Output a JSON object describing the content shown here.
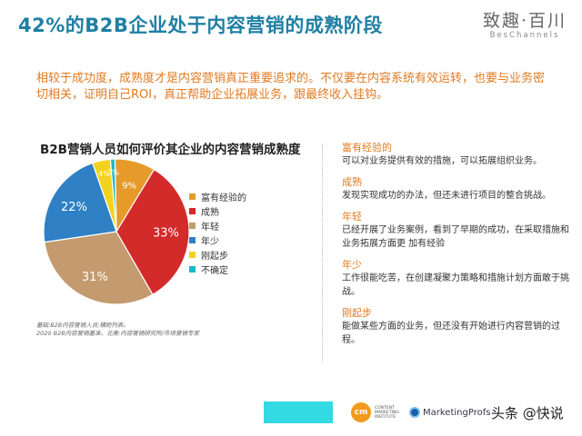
{
  "header": {
    "title": "42%的B2B企业处于内容营销的成熟阶段",
    "logo_cn": "致趣·百川",
    "logo_en": "BesChannels"
  },
  "intro": "相较于成功度，成熟度才是内容营销真正重要追求的。不仅要在内容系统有效运转，也要与业务密切相关，证明自己ROI，真正帮助企业拓展业务，跟最终收入挂钩。",
  "chart_data": {
    "type": "pie",
    "title": "B2B营销人员如何评价其企业的内容营销成熟度",
    "slices": [
      {
        "label": "富有经验的",
        "value": 9,
        "display": "9%",
        "color": "#e59a2a"
      },
      {
        "label": "成熟",
        "value": 33,
        "display": "33%",
        "color": "#d32a2a"
      },
      {
        "label": "年轻",
        "value": 31,
        "display": "31%",
        "color": "#c49b6e"
      },
      {
        "label": "年少",
        "value": 22,
        "display": "22%",
        "color": "#2f80c4"
      },
      {
        "label": "刚起步",
        "value": 4,
        "display": "4%",
        "color": "#f2d21e"
      },
      {
        "label": "不确定",
        "value": 1,
        "display": "1%",
        "color": "#19b8c9"
      }
    ],
    "legend_position": "right"
  },
  "notes": {
    "line1": "基础:B2B内容营销人员;辅助列表。",
    "line2": "2020 B2B内容营销基准、北美:内容营销研究所/市场营销专家"
  },
  "definitions": [
    {
      "term": "富有经验的",
      "desc": "可以对业务提供有效的措施，可以拓展组织业务。"
    },
    {
      "term": "成熟",
      "desc": "发现实现成功的办法，但还未进行项目的整合挑战。"
    },
    {
      "term": "年轻",
      "desc": "已经开展了业务案例，看到了早期的成功，在采取措施和业务拓展方面更 加有经验"
    },
    {
      "term": "年少",
      "desc": "工作很能吃苦，在创建凝聚力策略和措施计划方面敢于挑战。"
    },
    {
      "term": "刚起步",
      "desc": "能做某些方面的业务，但还没有开始进行内容营销的过程。"
    }
  ],
  "footer": {
    "cmi_mark": "cm",
    "cmi_text": "CONTENT MARKETING INSTITUTE",
    "marketingprofs": "MarketingProfs",
    "watermark": "头条 @快说"
  }
}
